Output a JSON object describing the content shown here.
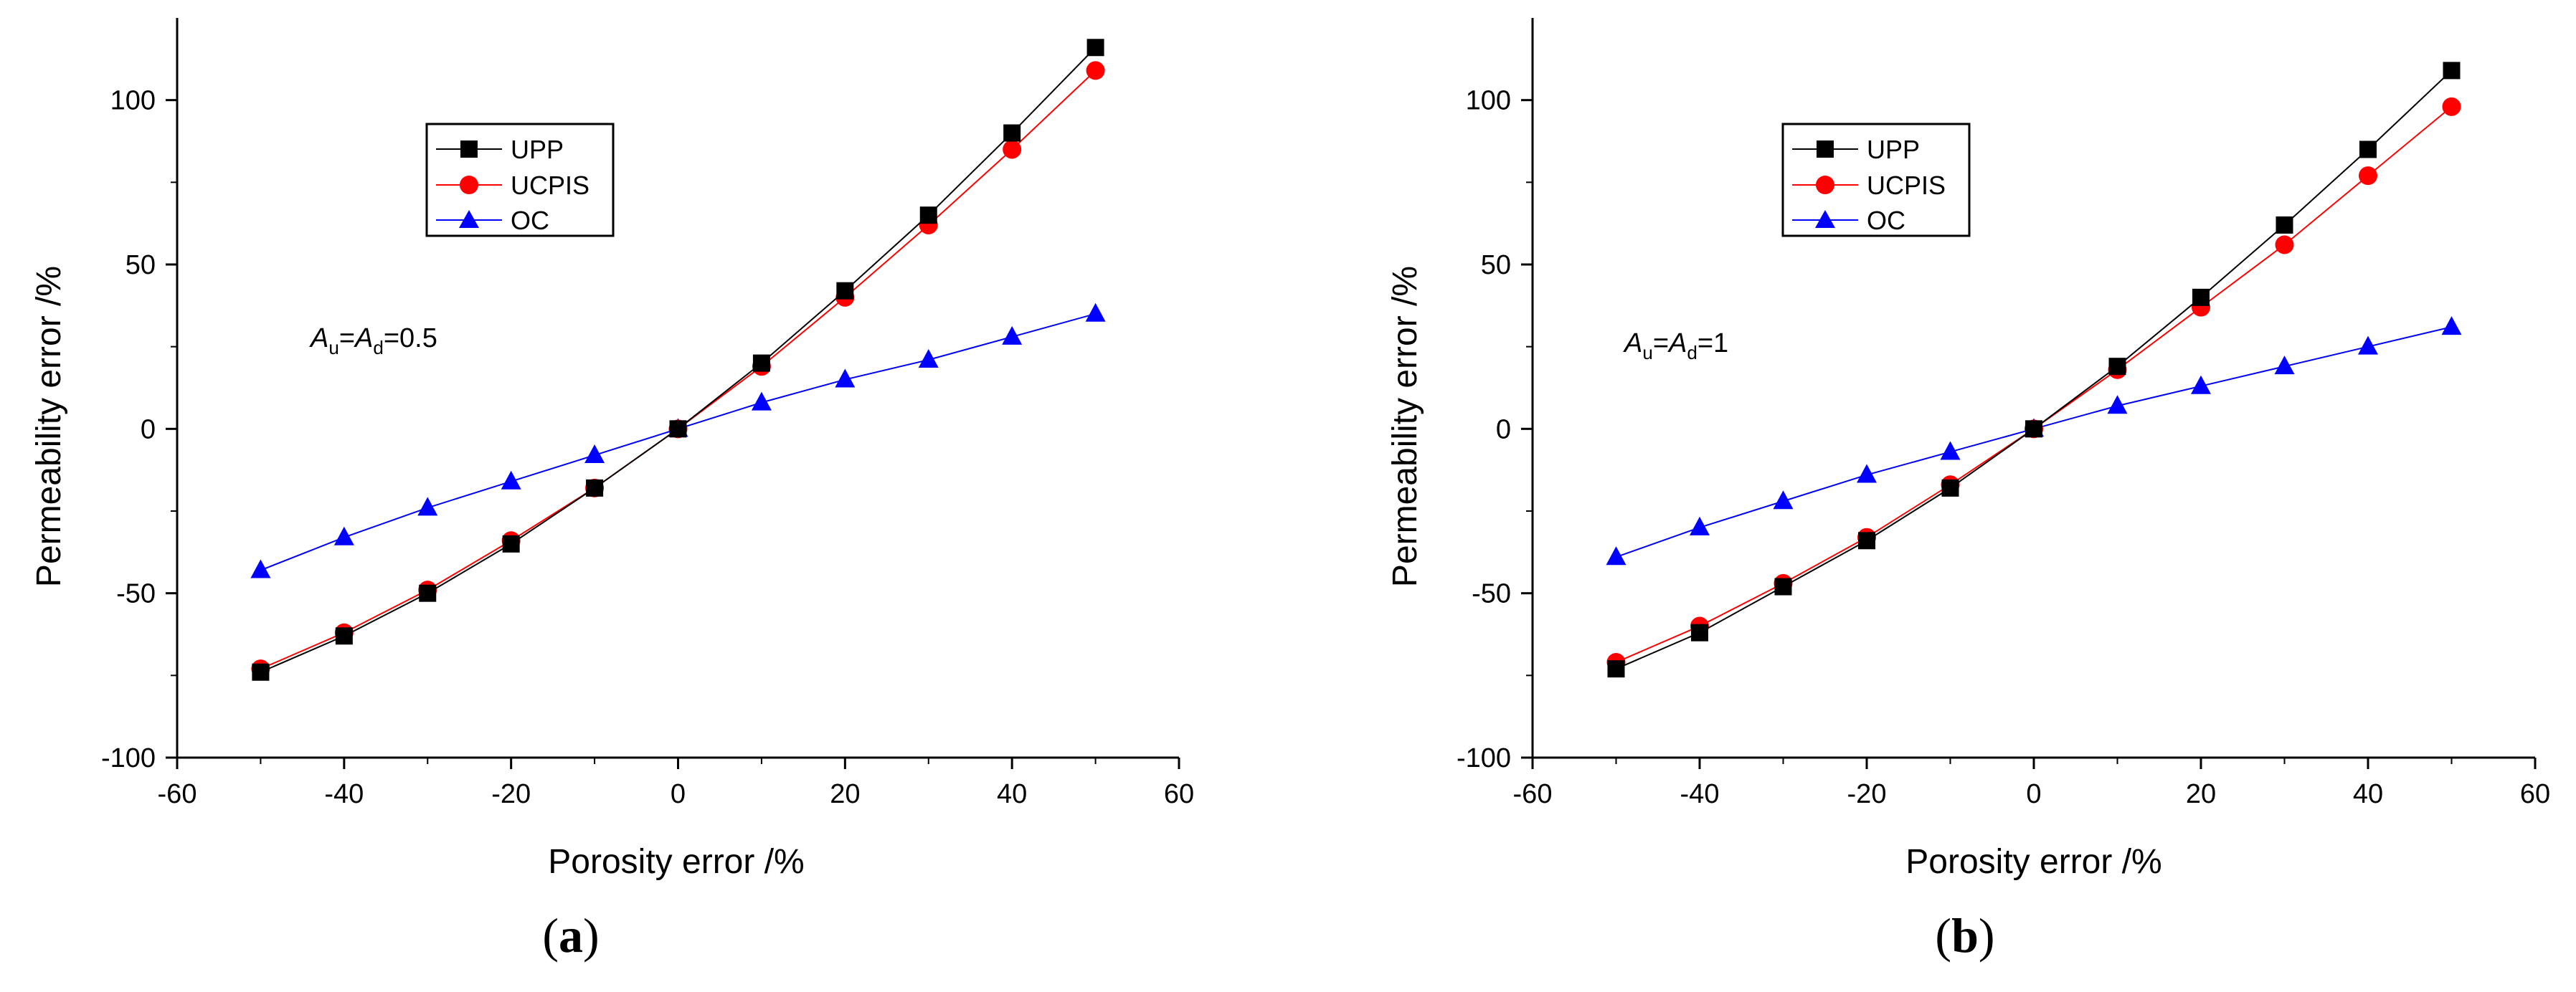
{
  "chart_data": [
    {
      "type": "line",
      "panel_label": "a",
      "xlabel": "Porosity error /%",
      "ylabel": "Permeability error /%",
      "xlim": [
        -60,
        60
      ],
      "ylim": [
        -100,
        125
      ],
      "xticks": [
        -60,
        -40,
        -20,
        0,
        20,
        40,
        60
      ],
      "yticks": [
        -100,
        -50,
        0,
        50,
        100
      ],
      "annotation": {
        "A1": "A",
        "s1": "u",
        "eq1": "=",
        "A2": "A",
        "s2": "d",
        "tail": "=0.5"
      },
      "legend_position": "upper-left",
      "x": [
        -50,
        -40,
        -30,
        -20,
        -10,
        0,
        10,
        20,
        30,
        40,
        50
      ],
      "series": [
        {
          "name": "UPP",
          "color": "#000000",
          "marker": "square",
          "values": [
            -74,
            -63,
            -50,
            -35,
            -18,
            0,
            20,
            42,
            65,
            90,
            116
          ]
        },
        {
          "name": "UCPIS",
          "color": "#ff0000",
          "marker": "circle",
          "values": [
            -73,
            -62,
            -49,
            -34,
            -18,
            0,
            19,
            40,
            62,
            85,
            109
          ]
        },
        {
          "name": "OC",
          "color": "#0000ff",
          "marker": "triangle",
          "values": [
            -43,
            -33,
            -24,
            -16,
            -8,
            0,
            8,
            15,
            21,
            28,
            35
          ]
        }
      ]
    },
    {
      "type": "line",
      "panel_label": "b",
      "xlabel": "Porosity error /%",
      "ylabel": "Permeability error /%",
      "xlim": [
        -60,
        60
      ],
      "ylim": [
        -100,
        125
      ],
      "xticks": [
        -60,
        -40,
        -20,
        0,
        20,
        40,
        60
      ],
      "yticks": [
        -100,
        -50,
        0,
        50,
        100
      ],
      "annotation": {
        "A1": "A",
        "s1": "u",
        "eq1": "=",
        "A2": "A",
        "s2": "d",
        "tail": "=1"
      },
      "legend_position": "upper-left",
      "x": [
        -50,
        -40,
        -30,
        -20,
        -10,
        0,
        10,
        20,
        30,
        40,
        50
      ],
      "series": [
        {
          "name": "UPP",
          "color": "#000000",
          "marker": "square",
          "values": [
            -73,
            -62,
            -48,
            -34,
            -18,
            0,
            19,
            40,
            62,
            85,
            109
          ]
        },
        {
          "name": "UCPIS",
          "color": "#ff0000",
          "marker": "circle",
          "values": [
            -71,
            -60,
            -47,
            -33,
            -17,
            0,
            18,
            37,
            56,
            77,
            98
          ]
        },
        {
          "name": "OC",
          "color": "#0000ff",
          "marker": "triangle",
          "values": [
            -39,
            -30,
            -22,
            -14,
            -7,
            0,
            7,
            13,
            19,
            25,
            31
          ]
        }
      ]
    }
  ]
}
